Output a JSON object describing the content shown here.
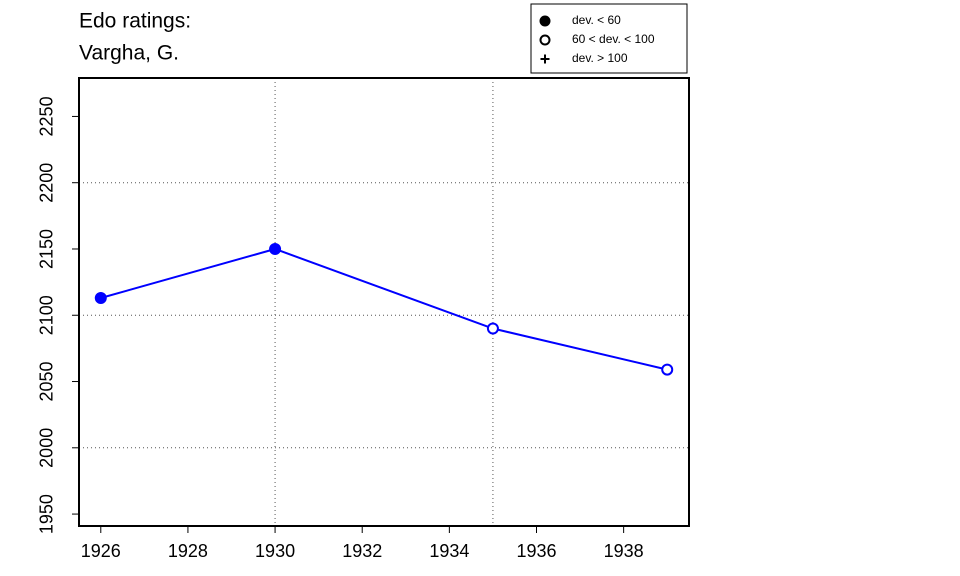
{
  "chart_data": {
    "type": "line",
    "title": "Edo ratings:",
    "subtitle": "Vargha, G.",
    "x": [
      1926,
      1930,
      1935,
      1939
    ],
    "series": [
      {
        "name": "Vargha, G.",
        "color": "#0000ff",
        "values": [
          2113,
          2150,
          2090,
          2059
        ],
        "markers": [
          "filled",
          "filled",
          "open",
          "open"
        ]
      }
    ],
    "xlim": [
      1925.5,
      1939.5
    ],
    "xticks": [
      1926,
      1928,
      1930,
      1932,
      1934,
      1936,
      1938
    ],
    "ylim": [
      1941,
      2279
    ],
    "yticks": [
      1950,
      2000,
      2050,
      2100,
      2150,
      2200,
      2250
    ],
    "xgrid": [
      1930,
      1935
    ],
    "ygrid": [
      2000,
      2100,
      2200
    ],
    "legend_position": "top-right",
    "legend": [
      {
        "label": "dev. < 60",
        "marker": "filled"
      },
      {
        "label": "60 < dev. < 100",
        "marker": "open"
      },
      {
        "label": "dev. > 100",
        "marker": "plus"
      }
    ]
  }
}
